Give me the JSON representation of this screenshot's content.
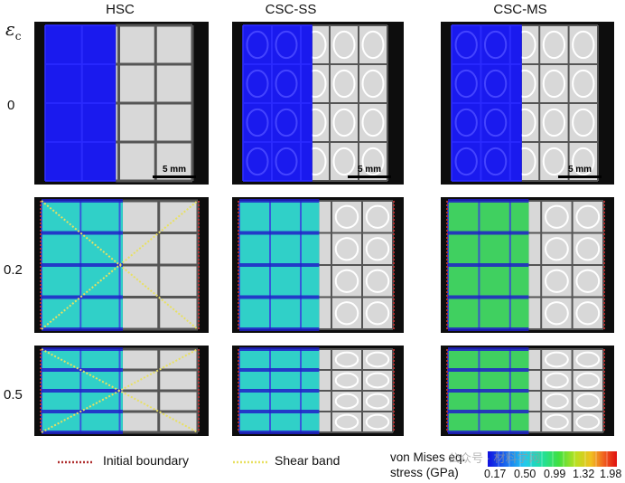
{
  "columns": [
    "HSC",
    "CSC-SS",
    "CSC-MS"
  ],
  "strain_symbol": "ε",
  "strain_subscript": "c",
  "rows": [
    "0",
    "0.2",
    "0.5"
  ],
  "scale_bar": "5 mm",
  "legend": {
    "initial_boundary": "Initial boundary",
    "shear_band": "Shear band",
    "colorbar_title_line1": "von Mises eq.",
    "colorbar_title_line2": "stress (GPa)",
    "colorbar_ticks": [
      "0.17",
      "0.50",
      "0.99",
      "1.32",
      "1.98"
    ]
  },
  "colors": {
    "initial_boundary": "#b03030",
    "shear_band": "#e8e060",
    "sim_low": "#1a1aee",
    "sim_mid": "#30d0c8",
    "sim_high_ms": "#40d060",
    "specimen": "#d8d8d8"
  },
  "watermark": "公众号 · 材料学网"
}
